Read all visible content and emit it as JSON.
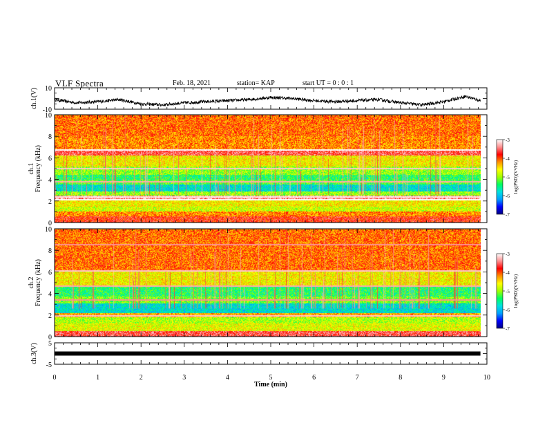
{
  "header": {
    "title": "VLF Spectra",
    "date": "Feb. 18, 2021",
    "station": "station= KAP",
    "start_ut": "start  UT =   0 : 0  : 1"
  },
  "colorbar": {
    "label": "log(PSD)(V²/Hz)",
    "tick_labels": [
      "-3",
      "-4",
      "-5",
      "-6",
      "-7"
    ],
    "range": [
      -7,
      -3
    ],
    "colors": [
      "#000080",
      "#0000ff",
      "#00a0ff",
      "#00e0e0",
      "#00ff60",
      "#a0ff00",
      "#ffff00",
      "#ff9000",
      "#ff0000",
      "#ff9090",
      "#ffffff"
    ]
  },
  "chart_data": [
    {
      "type": "line",
      "panel": "ch1-waveform",
      "ylabel": "ch.1(V)",
      "ylim": [
        -10,
        10
      ],
      "y_tick_labels": [
        "10",
        "-10"
      ],
      "xlim": [
        0,
        10
      ],
      "x_end": 9.85,
      "trace_points_x": [
        0,
        0.5,
        1,
        1.5,
        2,
        2.5,
        3,
        3.5,
        4,
        4.5,
        5,
        5.5,
        6,
        6.5,
        7,
        7.5,
        8,
        8.5,
        9,
        9.5,
        9.85
      ],
      "trace_points_y": [
        -1,
        -4,
        -3,
        -1,
        -5,
        -6,
        -4,
        -3,
        -2,
        -1,
        1,
        0,
        -2,
        -3,
        -2,
        -1,
        -4,
        -6,
        -3,
        2,
        -2
      ],
      "color": "#000000"
    },
    {
      "type": "heatmap",
      "panel": "ch1-spectrogram",
      "ylabel": "ch.1\nFrequency (kHz)",
      "ylim": [
        0,
        10
      ],
      "y_tick_labels": [
        "0",
        "2",
        "4",
        "6",
        "8",
        "10"
      ],
      "xlim": [
        0,
        10
      ],
      "x_end": 9.85,
      "bands": [
        {
          "from": 0,
          "to": 0.6,
          "level": -3.8
        },
        {
          "from": 0.6,
          "to": 1.0,
          "level": -4.2
        },
        {
          "from": 1.0,
          "to": 1.5,
          "level": -4.8
        },
        {
          "from": 1.5,
          "to": 2.1,
          "level": -4.6
        },
        {
          "from": 2.1,
          "to": 2.5,
          "level": -3.4
        },
        {
          "from": 2.5,
          "to": 2.9,
          "level": -5.0
        },
        {
          "from": 2.9,
          "to": 3.5,
          "level": -5.8
        },
        {
          "from": 3.5,
          "to": 4.0,
          "level": -5.2
        },
        {
          "from": 4.0,
          "to": 4.4,
          "level": -5.4
        },
        {
          "from": 4.4,
          "to": 5.2,
          "level": -5.0
        },
        {
          "from": 5.2,
          "to": 6.2,
          "level": -4.6
        },
        {
          "from": 6.2,
          "to": 6.8,
          "level": -3.6
        },
        {
          "from": 6.8,
          "to": 8.0,
          "level": -4.2
        },
        {
          "from": 8.0,
          "to": 10.0,
          "level": -4.1
        }
      ],
      "lines": [
        {
          "freq": 2.1,
          "level": -3.0
        },
        {
          "freq": 2.4,
          "level": -3.1
        },
        {
          "freq": 3.8,
          "level": -3.3
        },
        {
          "freq": 5.0,
          "level": -3.2
        },
        {
          "freq": 6.7,
          "level": -3.0
        }
      ]
    },
    {
      "type": "heatmap",
      "panel": "ch2-spectrogram",
      "ylabel": "ch.2\nFrequency (kHz)",
      "ylim": [
        0,
        10
      ],
      "y_tick_labels": [
        "0",
        "2",
        "4",
        "6",
        "8",
        "10"
      ],
      "xlim": [
        0,
        10
      ],
      "x_end": 9.85,
      "bands": [
        {
          "from": 0,
          "to": 0.5,
          "level": -3.6
        },
        {
          "from": 0.5,
          "to": 1.2,
          "level": -4.7
        },
        {
          "from": 1.2,
          "to": 1.8,
          "level": -4.9
        },
        {
          "from": 1.8,
          "to": 2.2,
          "level": -4.3
        },
        {
          "from": 2.2,
          "to": 3.1,
          "level": -5.8
        },
        {
          "from": 3.1,
          "to": 3.7,
          "level": -5.1
        },
        {
          "from": 3.7,
          "to": 4.6,
          "level": -5.4
        },
        {
          "from": 4.6,
          "to": 6.0,
          "level": -4.6
        },
        {
          "from": 6.0,
          "to": 10.0,
          "level": -4.1
        }
      ],
      "lines": [
        {
          "freq": 1.9,
          "level": -3.2
        },
        {
          "freq": 3.4,
          "level": -3.4
        },
        {
          "freq": 4.7,
          "level": -3.3
        },
        {
          "freq": 6.1,
          "level": -3.2
        },
        {
          "freq": 8.5,
          "level": -3.4
        }
      ]
    },
    {
      "type": "line",
      "panel": "ch3-waveform",
      "ylabel": "ch.3(V)",
      "ylim": [
        -5,
        5
      ],
      "y_tick_labels": [
        "5",
        "-5"
      ],
      "xlim": [
        0,
        10
      ],
      "x_end": 9.85,
      "constant_value": 0,
      "color": "#000000"
    }
  ],
  "x_axis": {
    "label": "Time (min)",
    "tick_labels": [
      "0",
      "1",
      "2",
      "3",
      "4",
      "5",
      "6",
      "7",
      "8",
      "9",
      "10"
    ]
  }
}
